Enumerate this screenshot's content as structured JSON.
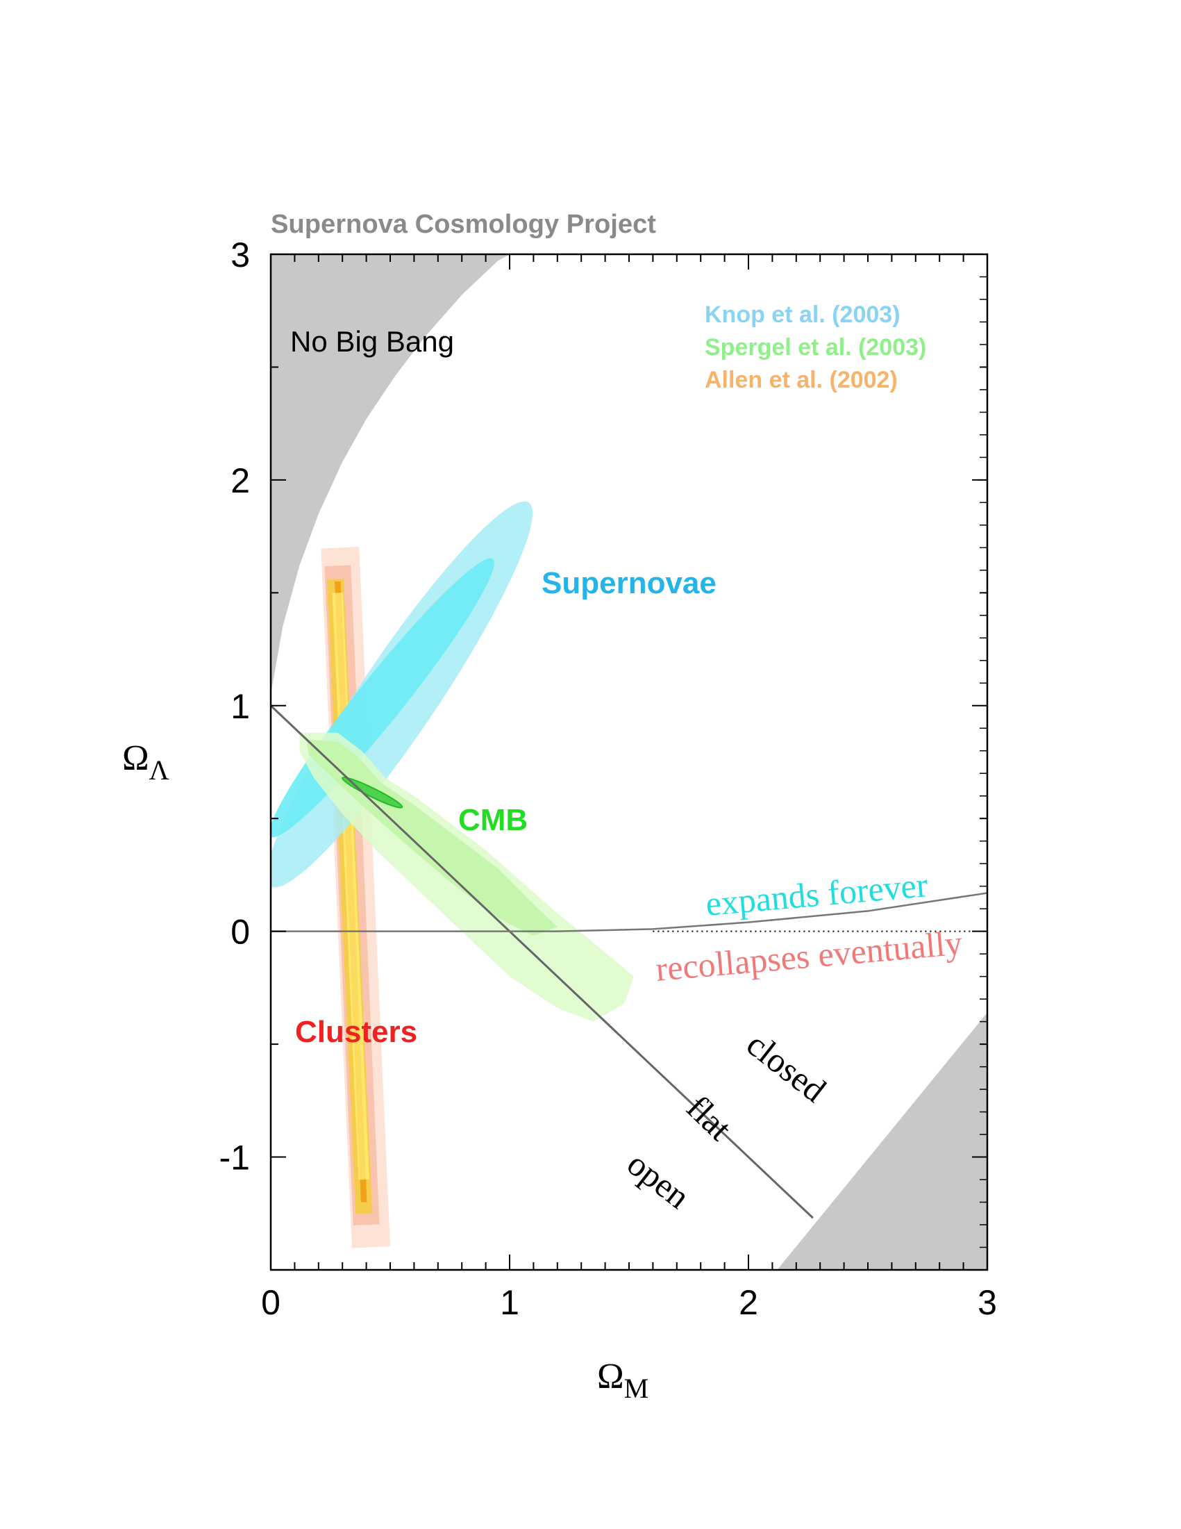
{
  "chart_data": {
    "type": "contour",
    "title": "Supernova Cosmology Project",
    "xlabel": "Ω",
    "xlabel_sub": "M",
    "ylabel": "Ω",
    "ylabel_sub": "Λ",
    "xlim": [
      0,
      3
    ],
    "ylim": [
      -1.5,
      3
    ],
    "x_ticks": [
      0,
      1,
      2,
      3
    ],
    "y_ticks": [
      -1,
      0,
      1,
      2,
      3
    ],
    "x_tick_labels": [
      "0",
      "1",
      "2",
      "3"
    ],
    "y_tick_labels": [
      "-1",
      "0",
      "1",
      "2",
      "3"
    ],
    "minor_x_step": 0.1,
    "minor_y_step": 0.1,
    "grid": false,
    "legend": {
      "placement": "top-right",
      "entries": [
        {
          "label": "Knop et al. (2003)",
          "color": "#88d4f2"
        },
        {
          "label": "Spergel et al.  (2003)",
          "color": "#8ff08a"
        },
        {
          "label": "Allen et al.  (2002)",
          "color": "#f7b36a"
        }
      ]
    },
    "regions": [
      {
        "label": "No Big Bang",
        "color": "#c8c8c8"
      },
      {
        "label": "Supernovae",
        "color": "#24b4e8",
        "contour_center": [
          0.55,
          1.05
        ],
        "contour_95": {
          "from": [
            0.0,
            0.2
          ],
          "to": [
            1.08,
            1.9
          ],
          "halfwidth": 0.16
        },
        "contour_68": {
          "from": [
            0.0,
            0.42
          ],
          "to": [
            0.93,
            1.65
          ],
          "halfwidth": 0.095
        }
      },
      {
        "label": "CMB",
        "color": "#22dd22",
        "contour_center": [
          0.3,
          0.7
        ],
        "inner_ellipse": {
          "center": [
            0.4,
            0.62
          ],
          "from": [
            0.3,
            0.68
          ],
          "to": [
            0.55,
            0.55
          ]
        }
      },
      {
        "label": "Clusters",
        "color": "#ee2222",
        "contour_center": [
          0.35,
          0.1
        ],
        "bands": [
          {
            "level": "outer",
            "from": [
              0.29,
              1.7
            ],
            "to": [
              0.42,
              -1.4
            ],
            "width": 0.16,
            "color": "#fde3d6"
          },
          {
            "level": "95",
            "from": [
              0.28,
              1.62
            ],
            "to": [
              0.4,
              -1.3
            ],
            "width": 0.11,
            "color": "#f8c4ad"
          },
          {
            "level": "68",
            "from": [
              0.27,
              1.56
            ],
            "to": [
              0.39,
              -1.25
            ],
            "width": 0.07,
            "color": "#f6cc4c"
          },
          {
            "level": "core",
            "from": [
              0.28,
              1.55
            ],
            "to": [
              0.39,
              -1.2
            ],
            "width": 0.025,
            "color": "#f0a218"
          }
        ]
      }
    ],
    "lines": [
      {
        "label": "flat",
        "from": [
          0,
          1
        ],
        "to": [
          2.27,
          -1.27
        ],
        "color": "#666666"
      },
      {
        "label": "expands forever / recollapses eventually",
        "points": [
          [
            0,
            0
          ],
          [
            1.2,
            0.0
          ],
          [
            1.6,
            0.01
          ],
          [
            2.0,
            0.04
          ],
          [
            2.5,
            0.09
          ],
          [
            3.0,
            0.17
          ]
        ],
        "color": "#777777"
      },
      {
        "label": "dotted",
        "from": [
          1.6,
          0
        ],
        "to": [
          3.0,
          0
        ],
        "style": "dotted"
      }
    ],
    "annotations": [
      {
        "text": "expands forever",
        "color": "#22dddd"
      },
      {
        "text": "recollapses eventually",
        "color": "#f07a7a"
      },
      {
        "text": "closed",
        "color": "#000000"
      },
      {
        "text": "flat",
        "color": "#000000"
      },
      {
        "text": "open",
        "color": "#000000"
      }
    ]
  }
}
